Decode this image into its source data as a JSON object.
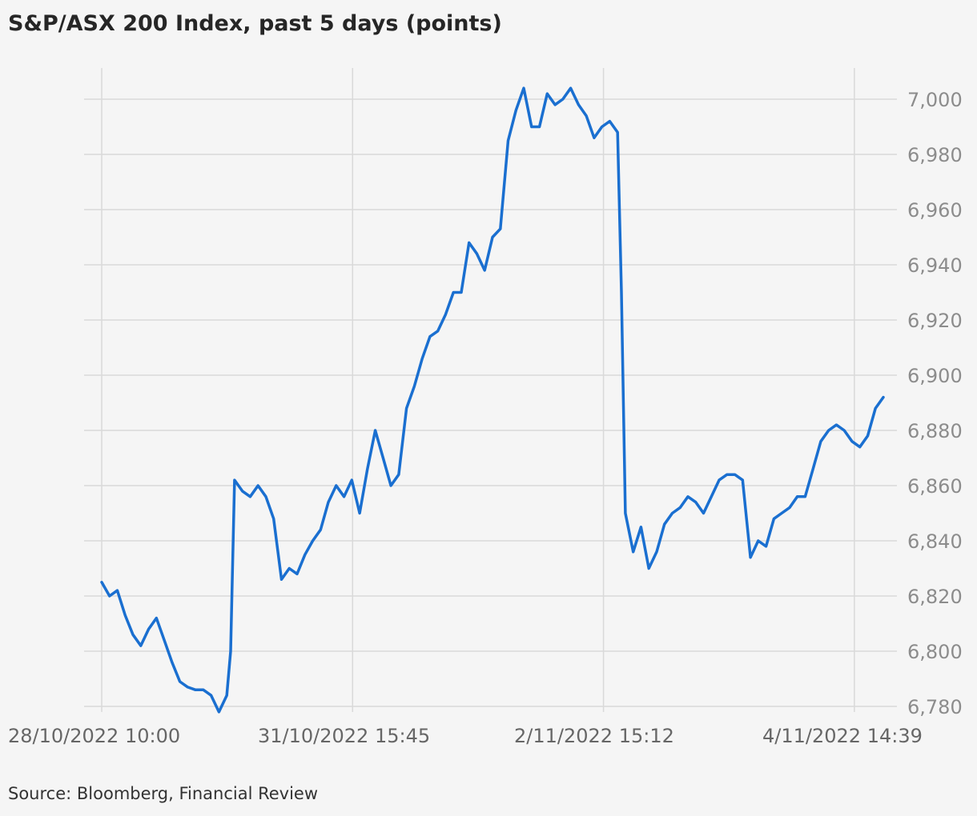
{
  "chart_data": {
    "type": "line",
    "title": "S&P/ASX 200 Index, past 5 days (points)",
    "source": "Source: Bloomberg, Financial Review",
    "ylim": [
      6780,
      7010
    ],
    "yticks": [
      6780,
      6800,
      6820,
      6840,
      6860,
      6880,
      6900,
      6920,
      6940,
      6960,
      6980,
      7000
    ],
    "yticklabels": [
      "6,780",
      "6,800",
      "6,820",
      "6,840",
      "6,860",
      "6,880",
      "6,900",
      "6,920",
      "6,940",
      "6,960",
      "6,980",
      "7,000"
    ],
    "y_axis_position": "right",
    "grid": true,
    "xlim": [
      0,
      100
    ],
    "xticks": [
      0,
      32.1,
      64.2,
      96.3
    ],
    "xticklabels": [
      "28/10/2022 10:00",
      "31/10/2022 15:45",
      "2/11/2022 15:12",
      "4/11/2022 14:39"
    ],
    "series": [
      {
        "color": "#1a6fd0",
        "x": [
          0,
          1.0,
          2.0,
          3.0,
          4.0,
          5.0,
          6.0,
          7.0,
          8.0,
          9.0,
          10.0,
          11.0,
          12.0,
          13.0,
          14.0,
          15.0,
          16.0,
          16.5,
          17.0,
          18.0,
          19.0,
          20.0,
          21.0,
          22.0,
          23.0,
          24.0,
          25.0,
          26.0,
          27.0,
          28.0,
          29.0,
          30.0,
          31.0,
          32.0,
          33.0,
          34.0,
          35.0,
          36.0,
          37.0,
          38.0,
          39.0,
          40.0,
          41.0,
          42.0,
          43.0,
          44.0,
          45.0,
          46.0,
          47.0,
          48.0,
          49.0,
          50.0,
          51.0,
          52.0,
          53.0,
          54.0,
          55.0,
          56.0,
          57.0,
          58.0,
          59.0,
          60.0,
          61.0,
          62.0,
          63.0,
          64.0,
          65.0,
          66.0,
          66.5,
          67.0,
          68.0,
          69.0,
          70.0,
          71.0,
          72.0,
          73.0,
          74.0,
          75.0,
          76.0,
          77.0,
          78.0,
          79.0,
          80.0,
          81.0,
          82.0,
          83.0,
          84.0,
          85.0,
          86.0,
          87.0,
          88.0,
          89.0,
          90.0,
          91.0,
          92.0,
          93.0,
          94.0,
          95.0,
          96.0,
          97.0,
          98.0,
          99.0,
          100.0
        ],
        "y": [
          6825,
          6820,
          6822,
          6813,
          6806,
          6802,
          6808,
          6812,
          6804,
          6796,
          6789,
          6787,
          6786,
          6786,
          6784,
          6778,
          6784,
          6800,
          6862,
          6858,
          6856,
          6860,
          6856,
          6848,
          6826,
          6830,
          6828,
          6835,
          6840,
          6844,
          6854,
          6860,
          6856,
          6862,
          6850,
          6866,
          6880,
          6870,
          6860,
          6864,
          6888,
          6896,
          6906,
          6914,
          6916,
          6922,
          6930,
          6930,
          6948,
          6944,
          6938,
          6950,
          6953,
          6985,
          6996,
          7004,
          6990,
          6990,
          7002,
          6998,
          7000,
          7004,
          6998,
          6994,
          6986,
          6990,
          6992,
          6988,
          6930,
          6850,
          6836,
          6845,
          6830,
          6836,
          6846,
          6850,
          6852,
          6856,
          6854,
          6850,
          6856,
          6862,
          6864,
          6864,
          6862,
          6834,
          6840,
          6838,
          6848,
          6850,
          6852,
          6856,
          6856,
          6866,
          6876,
          6880,
          6882,
          6880,
          6876,
          6874,
          6878,
          6888,
          6892
        ]
      }
    ]
  }
}
